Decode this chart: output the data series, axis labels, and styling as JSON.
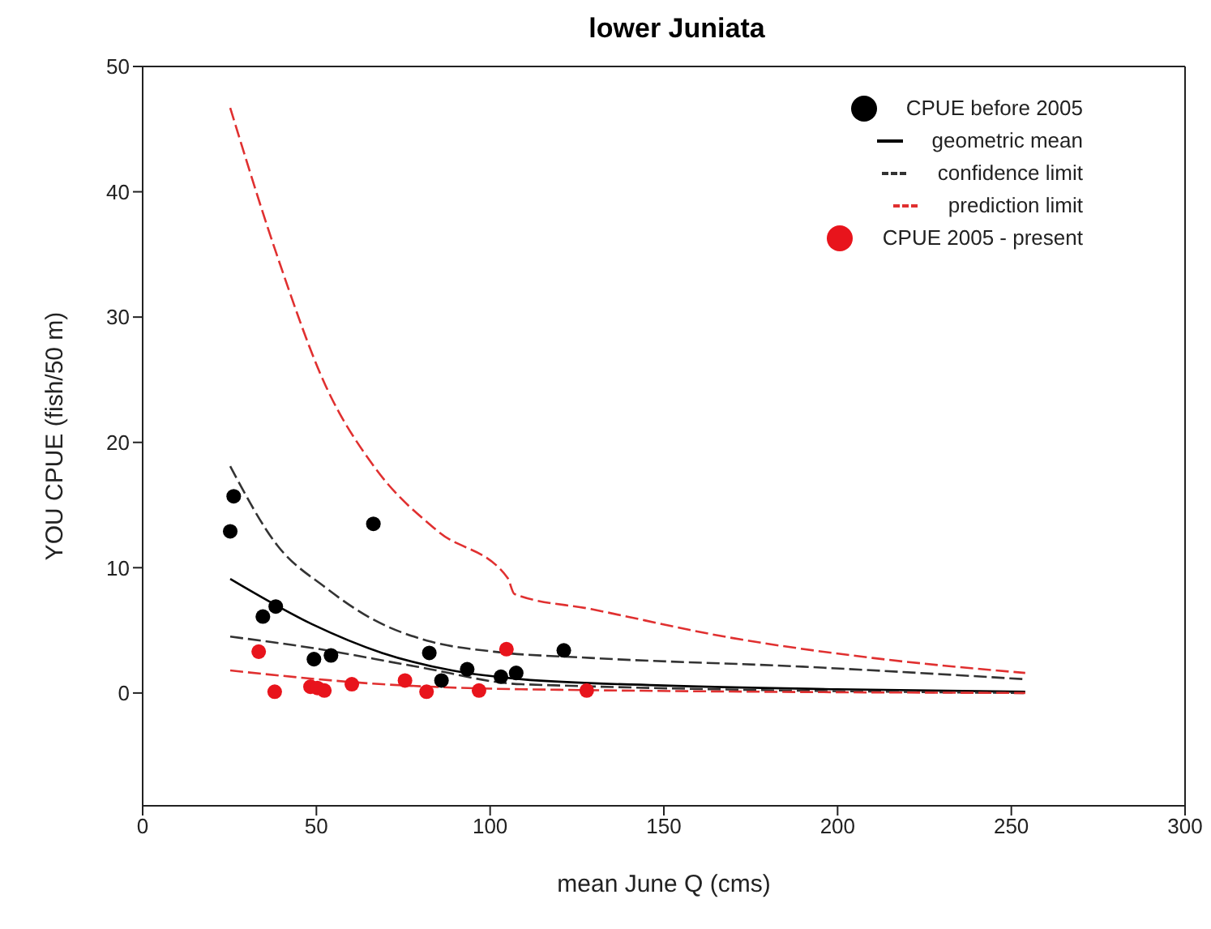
{
  "chart_data": {
    "type": "scatter",
    "title": "lower Juniata",
    "xlabel": "mean June Q (cms)",
    "ylabel": "YOU CPUE (fish/50 m)",
    "xlim": [
      0,
      300
    ],
    "xticks": [
      0,
      50,
      100,
      150,
      200,
      250,
      300
    ],
    "ylim": [
      -9,
      50
    ],
    "yticks": [
      0,
      10,
      20,
      30,
      40,
      50
    ],
    "legend": "top right",
    "series": [
      {
        "name": "CPUE before 2005",
        "type": "scatter",
        "marker": "circle",
        "color": "#000000",
        "x": [
          25.2,
          26.2,
          66.4,
          34.6,
          38.3,
          49.3,
          54.2,
          82.5,
          86.0,
          93.4,
          103.1,
          107.5,
          121.2
        ],
        "values": [
          12.9,
          15.7,
          13.5,
          6.1,
          6.9,
          2.7,
          3.0,
          3.2,
          1.0,
          1.9,
          1.3,
          1.6,
          3.4
        ]
      },
      {
        "name": "geometric mean",
        "type": "line",
        "marker": "none",
        "line_style": "solid",
        "color": "#000000",
        "x": [
          25.2,
          48.7,
          68.9,
          89,
          109,
          150,
          200,
          254
        ],
        "values": [
          9.1,
          5.5,
          3.2,
          1.8,
          1.1,
          0.6,
          0.3,
          0.1
        ]
      },
      {
        "name": "confidence limit",
        "type": "line",
        "marker": "none",
        "line_style": "dashed",
        "color": "#333333",
        "x": [
          25.2,
          38.7,
          52.7,
          66.8,
          83,
          101,
          129,
          190,
          254
        ],
        "values": [
          18.1,
          11.8,
          8.4,
          5.8,
          4.1,
          3.3,
          2.8,
          2.1,
          1.1
        ]
      },
      {
        "type": "line",
        "marker": "none",
        "line_style": "dashed",
        "color": "#333333",
        "x": [
          25.2,
          48.7,
          79,
          109,
          254
        ],
        "values": [
          4.5,
          3.6,
          2.1,
          0.7,
          0
        ]
      },
      {
        "name": "prediction limit",
        "type": "line",
        "marker": "none",
        "line_style": "dashed",
        "color": "#e03030",
        "x": [
          25.2,
          38.7,
          52.7,
          66.8,
          85,
          105,
          107,
          129,
          169.5,
          210,
          254
        ],
        "values": [
          46.7,
          34.9,
          24.5,
          18.0,
          12.9,
          9.2,
          7.9,
          6.7,
          4.4,
          2.8,
          1.6
        ]
      },
      {
        "type": "line",
        "marker": "none",
        "line_style": "dashed",
        "color": "#e03030",
        "x": [
          25.2,
          69,
          109,
          254
        ],
        "values": [
          1.8,
          0.7,
          0.3,
          0
        ]
      },
      {
        "name": "CPUE 2005 - present",
        "type": "scatter",
        "marker": "circle",
        "color": "#e8141c",
        "x": [
          33.4,
          38.0,
          48.3,
          50.3,
          52.3,
          60.2,
          75.5,
          81.7,
          96.8,
          104.7,
          127.8
        ],
        "values": [
          3.3,
          0.1,
          0.5,
          0.4,
          0.2,
          0.7,
          1.0,
          0.1,
          0.2,
          3.5,
          0.2
        ]
      }
    ]
  }
}
